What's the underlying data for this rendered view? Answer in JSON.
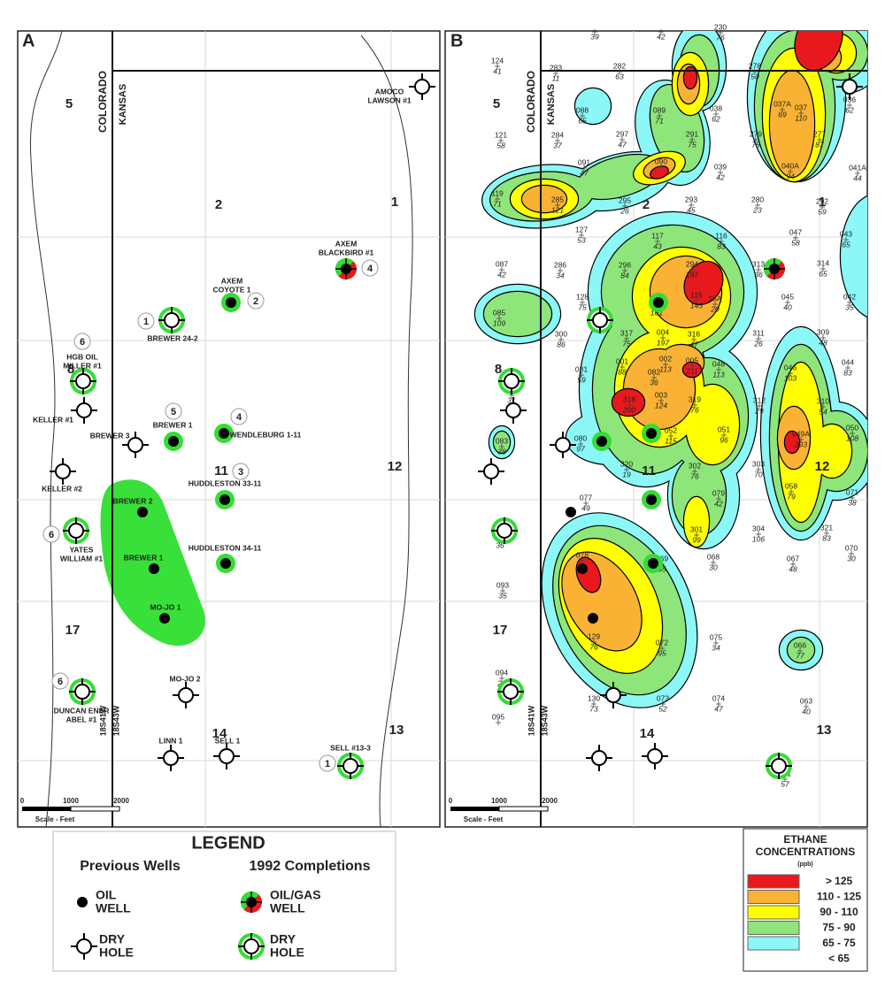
{
  "panel_a": {
    "letter": "A",
    "states": [
      "COLORADO",
      "KANSAS"
    ],
    "ranges": [
      "18S41W",
      "18S43W"
    ],
    "sections": [
      "5",
      "2",
      "1",
      "8",
      "11",
      "12",
      "17",
      "14",
      "13"
    ],
    "scale": {
      "ticks": [
        "0",
        "1000",
        "2000"
      ],
      "label": "Scale - Feet"
    },
    "wells": [
      {
        "label": [
          "AMOCO",
          "LAWSON #1"
        ]
      },
      {
        "label": [
          "AXEM",
          "BLACKBIRD #1"
        ],
        "number": 4
      },
      {
        "label": [
          "AXEM",
          "COYOTE 1"
        ],
        "number": 2
      },
      {
        "label": [
          "BREWER 24-2"
        ],
        "number": 1
      },
      {
        "label": [
          "HGB OIL",
          "MILLER #1"
        ],
        "number": 6
      },
      {
        "label": [
          "KELLER #1"
        ]
      },
      {
        "label": [
          "BREWER 3"
        ]
      },
      {
        "label": [
          "BREWER 1"
        ],
        "number": 5
      },
      {
        "label": [
          "WENDLEBURG 1-11"
        ],
        "number": 4
      },
      {
        "label": [
          "KELLER #2"
        ]
      },
      {
        "label": [
          "HUDDLESTON 33-11"
        ],
        "number": 3
      },
      {
        "label": [
          "BREWER 2"
        ]
      },
      {
        "label": [
          "YATES",
          "WILLIAM #1"
        ],
        "number": 6
      },
      {
        "label": [
          "BREWER 1"
        ]
      },
      {
        "label": [
          "HUDDLESTON 34-11"
        ]
      },
      {
        "label": [
          "MO-JO 1"
        ]
      },
      {
        "label": [
          "MO-JO 2"
        ]
      },
      {
        "label": [
          "DUNCAN ENER",
          "ABEL #1"
        ],
        "number": 6
      },
      {
        "label": [
          "LINN 1"
        ]
      },
      {
        "label": [
          "SELL 1"
        ]
      },
      {
        "label": [
          "SELL #13-3"
        ],
        "number": 1
      }
    ]
  },
  "panel_b": {
    "letter": "B",
    "states": [
      "COLORADO",
      "KANSAS"
    ],
    "ranges": [
      "18S41W",
      "18S43W"
    ],
    "sections": [
      "5",
      "2",
      "1",
      "8",
      "11",
      "12",
      "17",
      "14",
      "13"
    ],
    "scale": {
      "ticks": [
        "0",
        "1000",
        "2000"
      ],
      "label": "Scale - Feet"
    },
    "samples": [
      {
        "value": 39
      },
      {
        "value": 42
      },
      {
        "id": "230",
        "value": 76
      },
      {
        "id": "124",
        "value": 41
      },
      {
        "id": "283",
        "value": 11
      },
      {
        "id": "282",
        "value": 63
      },
      {
        "id": "278",
        "value": 50
      },
      {
        "id": "036",
        "value": 62
      },
      {
        "id": "088",
        "value": 65
      },
      {
        "id": "089",
        "value": 71
      },
      {
        "id": "038",
        "value": 62
      },
      {
        "id": "037A",
        "value": 69
      },
      {
        "id": "037",
        "value": 110
      },
      {
        "id": "121",
        "value": 58
      },
      {
        "id": "284",
        "value": 37
      },
      {
        "id": "297",
        "value": 47
      },
      {
        "id": "291",
        "value": 75
      },
      {
        "id": "279",
        "value": 75
      },
      {
        "id": "277",
        "value": 87
      },
      {
        "id": "091",
        "value": 47
      },
      {
        "id": "090"
      },
      {
        "id": "039",
        "value": 42
      },
      {
        "id": "040A",
        "value": 94
      },
      {
        "id": "041A",
        "value": 44
      },
      {
        "id": "119",
        "value": 71
      },
      {
        "id": "285",
        "value": 121
      },
      {
        "id": "295",
        "value": 26
      },
      {
        "id": "293",
        "value": 45
      },
      {
        "id": "280",
        "value": 23
      },
      {
        "id": "292",
        "value": 59
      },
      {
        "id": "127",
        "value": 53
      },
      {
        "id": "117",
        "value": 43
      },
      {
        "id": "116",
        "value": 83
      },
      {
        "id": "047",
        "value": 58
      },
      {
        "id": "043",
        "value": 65
      },
      {
        "id": "087",
        "value": 42
      },
      {
        "id": "286",
        "value": 34
      },
      {
        "id": "296",
        "value": 84
      },
      {
        "id": "294",
        "value": 197
      },
      {
        "id": "313",
        "value": 36
      },
      {
        "id": "314",
        "value": 65
      },
      {
        "id": "128",
        "value": 75
      },
      {
        "value": 101
      },
      {
        "id": "115",
        "value": 143
      },
      {
        "id": "15A",
        "value": 20
      },
      {
        "id": "045",
        "value": 40
      },
      {
        "id": "042",
        "value": 35
      },
      {
        "id": "085",
        "value": 109
      },
      {
        "id": "004",
        "value": 197
      },
      {
        "id": "317",
        "value": 75
      },
      {
        "id": "300",
        "value": 86
      },
      {
        "id": "316",
        "value": 47
      },
      {
        "id": "311",
        "value": 26
      },
      {
        "id": "309",
        "value": 48
      },
      {
        "id": "002",
        "value": 113
      },
      {
        "id": "005",
        "value": 211
      },
      {
        "id": "048",
        "value": 113
      },
      {
        "id": "001",
        "value": 88
      },
      {
        "id": "081",
        "value": 59
      },
      {
        "id": "044",
        "value": 83
      },
      {
        "id": "046",
        "value": 103
      },
      {
        "id": "082",
        "value": 36
      },
      {
        "id": "084",
        "value": 31
      },
      {
        "id": "003",
        "value": 124
      },
      {
        "id": "318",
        "value": 200
      },
      {
        "id": "319",
        "value": 76
      },
      {
        "id": "312",
        "value": 29
      },
      {
        "id": "310",
        "value": 54
      },
      {
        "id": "051",
        "value": 96
      },
      {
        "id": "052",
        "value": 115
      },
      {
        "id": "049A",
        "value": 293
      },
      {
        "id": "050",
        "value": 108
      },
      {
        "id": "083",
        "value": 38
      },
      {
        "id": "080",
        "value": 97
      },
      {
        "id": "320",
        "value": 19
      },
      {
        "id": "302",
        "value": 76
      },
      {
        "id": "303",
        "value": 70
      },
      {
        "id": "071",
        "value": 38
      },
      {
        "id": "077",
        "value": 49
      },
      {
        "id": "079",
        "value": 42
      },
      {
        "id": "058",
        "value": 79
      },
      {
        "id": "092",
        "value": 36
      },
      {
        "id": "304",
        "value": 106
      },
      {
        "id": "321",
        "value": 83
      },
      {
        "id": "301",
        "value": 99
      },
      {
        "id": "070",
        "value": 30
      },
      {
        "id": "078"
      },
      {
        "id": "069",
        "value": 65
      },
      {
        "id": "068",
        "value": 30
      },
      {
        "id": "067",
        "value": 48
      },
      {
        "id": "093",
        "value": 35
      },
      {
        "id": "129",
        "value": 76
      },
      {
        "id": "072",
        "value": 95
      },
      {
        "id": "075",
        "value": 34
      },
      {
        "id": "066",
        "value": 77
      },
      {
        "id": "094",
        "value": 22
      },
      {
        "id": "130",
        "value": 73
      },
      {
        "id": "073",
        "value": 52
      },
      {
        "id": "074",
        "value": 47
      },
      {
        "id": "063",
        "value": 40
      },
      {
        "id": "095"
      },
      {
        "id": "061",
        "value": 57
      }
    ]
  },
  "legend": {
    "title": "LEGEND",
    "previous": "Previous Wells",
    "completions": "1992 Completions",
    "oil_well": [
      "OIL",
      "WELL"
    ],
    "dry_hole": [
      "DRY",
      "HOLE"
    ],
    "oil_gas_well": [
      "OIL/GAS",
      "WELL"
    ],
    "new_dry_hole": [
      "DRY",
      "HOLE"
    ]
  },
  "ethane_legend": {
    "title": [
      "ETHANE",
      "CONCENTRATIONS"
    ],
    "unit": "(ppb)",
    "classes": [
      {
        "label": "> 125",
        "color": "#e8191c"
      },
      {
        "label": "110 - 125",
        "color": "#f9b233"
      },
      {
        "label": "90 - 110",
        "color": "#ffff00"
      },
      {
        "label": "75 - 90",
        "color": "#8ee57a"
      },
      {
        "label": "65 - 75",
        "color": "#8cf7f7"
      },
      {
        "label": "< 65",
        "color": "#ffffff"
      }
    ]
  }
}
